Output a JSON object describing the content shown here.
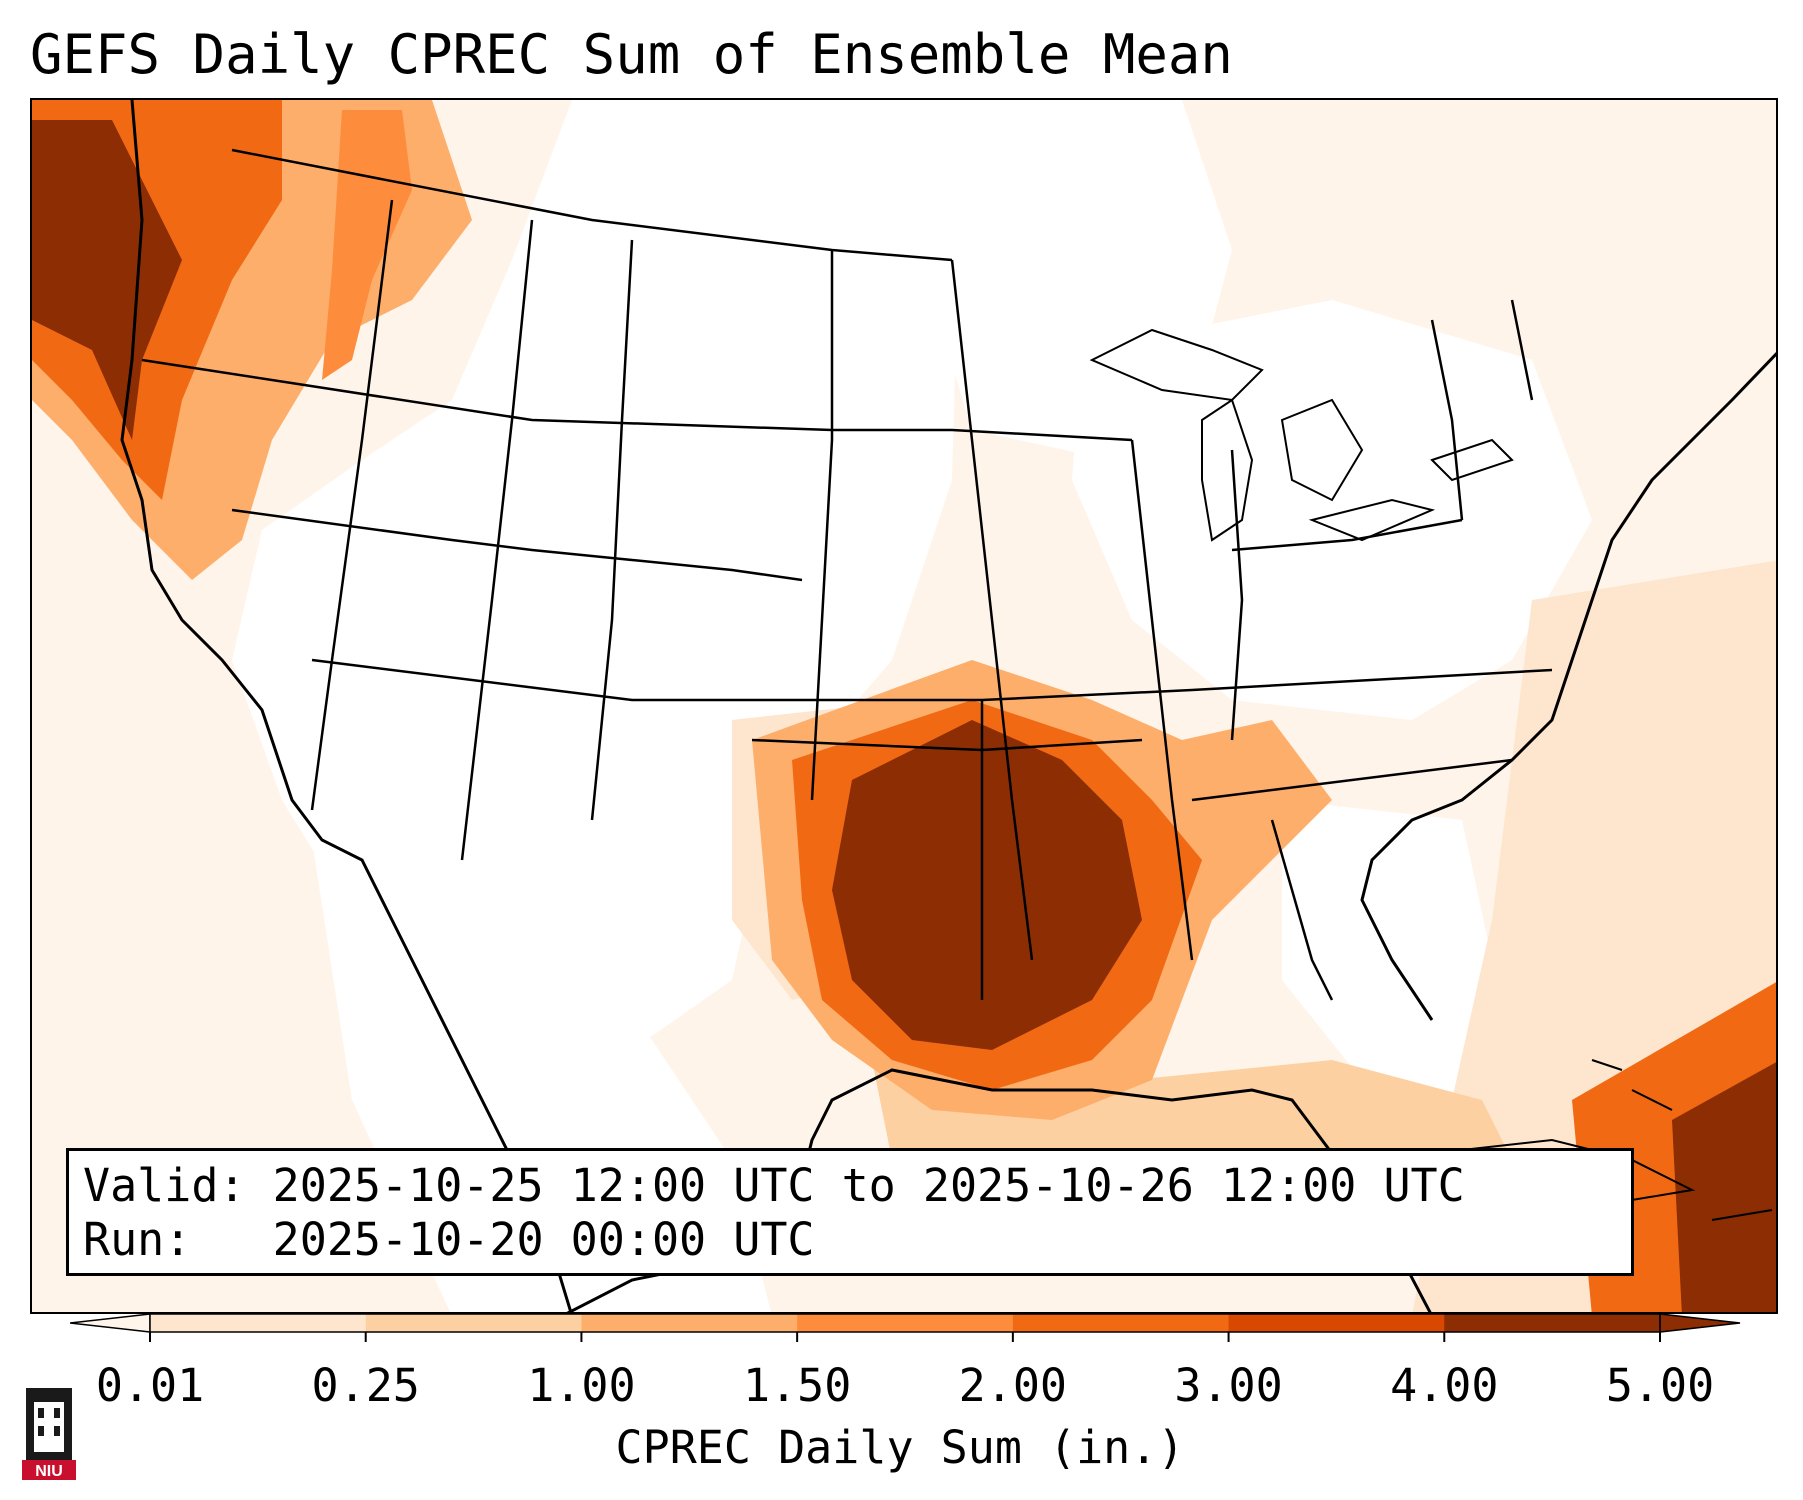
{
  "title": "GEFS Daily CPREC Sum of Ensemble Mean",
  "info": {
    "valid_label": "Valid:",
    "valid_value": "2025-10-25 12:00 UTC to 2025-10-26 12:00 UTC",
    "run_label": "Run:",
    "run_value": "2025-10-20 00:00 UTC"
  },
  "colorbar": {
    "label": "CPREC Daily Sum (in.)",
    "ticks": [
      "0.01",
      "0.25",
      "1.00",
      "1.50",
      "2.00",
      "3.00",
      "4.00",
      "5.00"
    ],
    "colors": [
      "#fff5eb",
      "#fee6ce",
      "#fdd0a2",
      "#fdae6b",
      "#fd8d3c",
      "#f16913",
      "#d94801",
      "#8c2d04"
    ],
    "extend": "both"
  },
  "logo": {
    "text": "NIU",
    "icon": "university-tower-icon"
  },
  "map": {
    "region": "CONUS",
    "field": "CPREC daily sum",
    "max_color": "#8c2d04"
  }
}
